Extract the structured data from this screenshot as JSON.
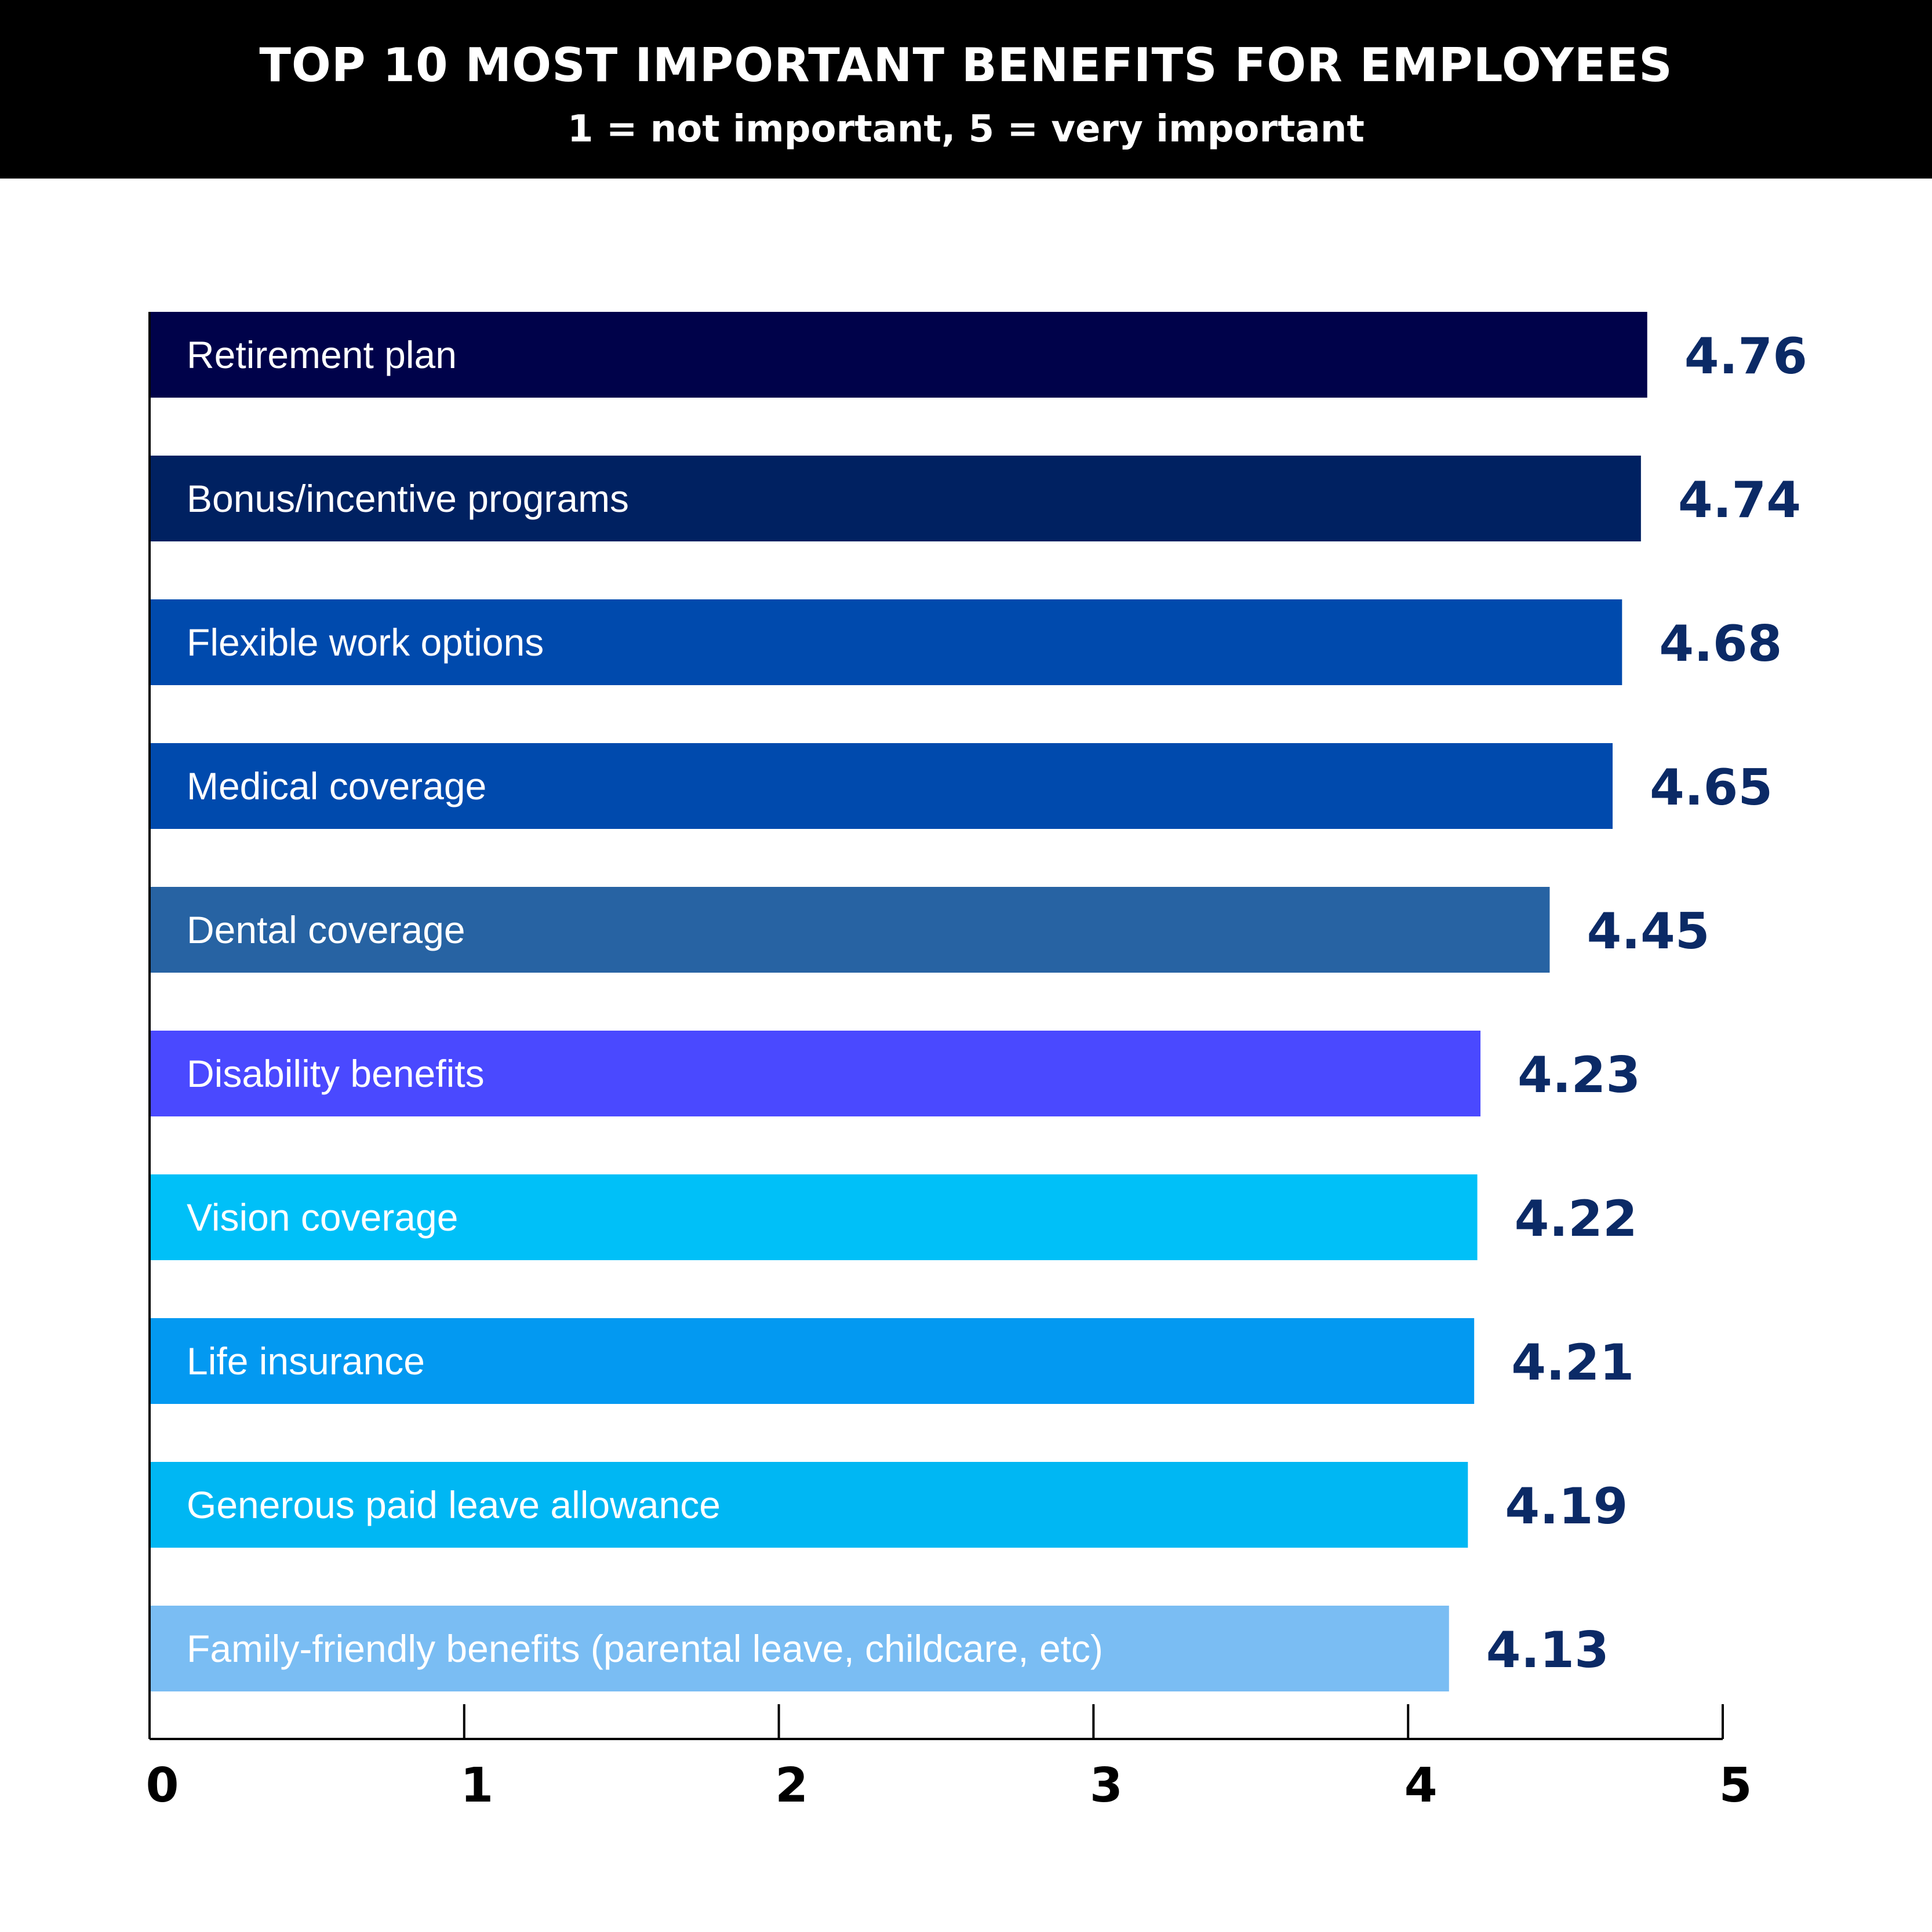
{
  "chart_data": {
    "type": "bar",
    "orientation": "horizontal",
    "title": "TOP 10 MOST IMPORTANT BENEFITS FOR EMPLOYEES",
    "subtitle": "1 = not important, 5 = very important",
    "categories": [
      "Retirement plan",
      "Bonus/incentive programs",
      "Flexible work options",
      "Medical coverage",
      "Dental coverage",
      "Disability benefits",
      "Vision coverage",
      "Life insurance",
      "Generous paid leave allowance",
      "Family-friendly benefits (parental leave, childcare, etc)"
    ],
    "values": [
      4.76,
      4.74,
      4.68,
      4.65,
      4.45,
      4.23,
      4.22,
      4.21,
      4.19,
      4.13
    ],
    "value_labels": [
      "4.76",
      "4.74",
      "4.68",
      "4.65",
      "4.45",
      "4.23",
      "4.22",
      "4.21",
      "4.19",
      "4.13"
    ],
    "colors": [
      "#00024a",
      "#002161",
      "#004aad",
      "#004aad",
      "#2763a3",
      "#4a49ff",
      "#00c0f8",
      "#0399f1",
      "#00b7f3",
      "#7abdf3"
    ],
    "xlim": [
      0,
      5
    ],
    "xticks": [
      "0",
      "1",
      "2",
      "3",
      "4",
      "5"
    ],
    "grid": false,
    "legend": "none"
  }
}
